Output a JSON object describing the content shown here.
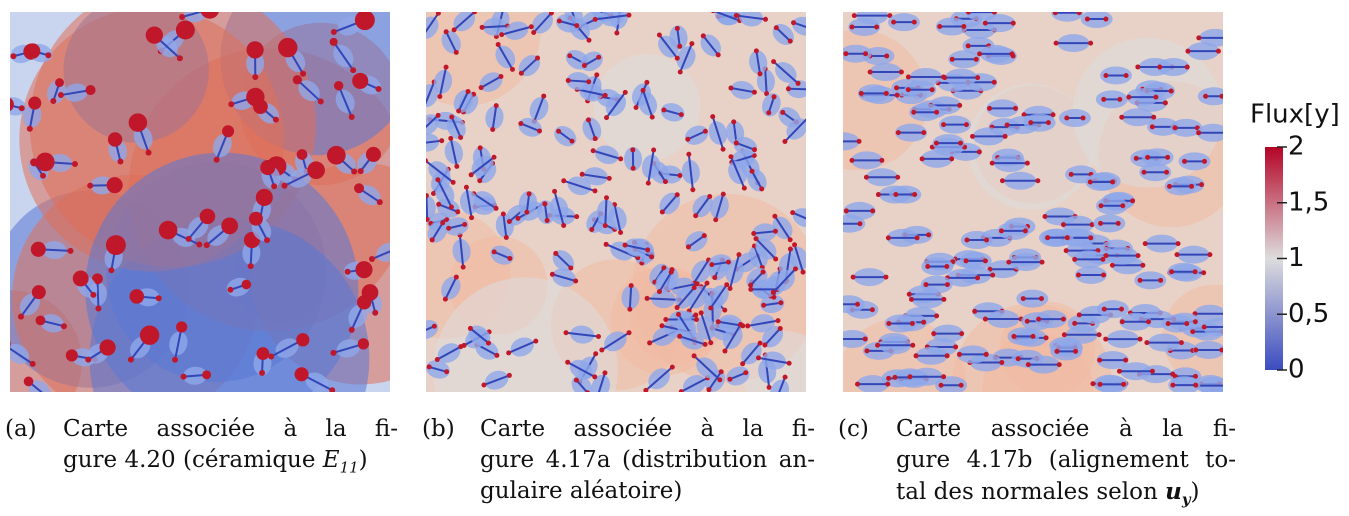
{
  "panels": [
    {
      "label": "(a)",
      "lines": [
        "Carte associée à la fi-",
        "gure 4.20 (céramique "
      ],
      "math": {
        "base": "E",
        "sub": "11"
      },
      "tail": ")"
    },
    {
      "label": "(b)",
      "lines": [
        "Carte associée à la fi-",
        "gure 4.17a (distribution an-",
        "gulaire aléatoire)"
      ]
    },
    {
      "label": "(c)",
      "lines": [
        "Carte associée à la fi-",
        "gure 4.17b (alignement to-",
        "tal des normales selon "
      ],
      "math": {
        "base": "u",
        "sub": "y"
      },
      "tail": ")"
    }
  ],
  "colorbar": {
    "title": "Flux[y]",
    "lim": [
      0,
      2
    ],
    "ticks": [
      2,
      {
        "value": 1.5,
        "label": "1,5"
      },
      1,
      {
        "value": 0.5,
        "label": "0,5"
      },
      0
    ]
  }
}
